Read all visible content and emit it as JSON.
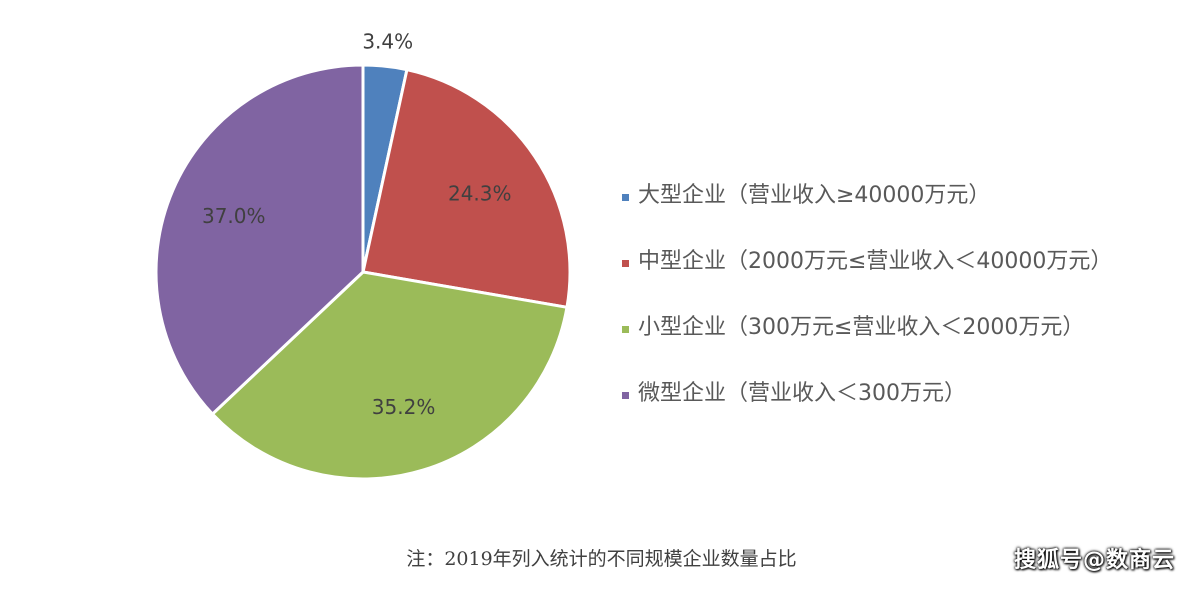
{
  "chart_data": {
    "type": "pie",
    "categories": [
      "大型企业（营业收入≥40000万元）",
      "中型企业（2000万元≤营业收入＜40000万元）",
      "小型企业（300万元≤营业收入＜2000万元）",
      "微型企业（营业收入＜300万元）"
    ],
    "values": [
      3.4,
      24.3,
      35.2,
      37.0
    ],
    "data_labels": [
      "3.4%",
      "24.3%",
      "35.2%",
      "37.0%"
    ],
    "colors": [
      "#4f81bd",
      "#c0504d",
      "#9bbb59",
      "#8064a2"
    ],
    "legend_position": "right",
    "start_angle": "12 o'clock, clockwise"
  },
  "footnote": "注：2019年列入统计的不同规模企业数量占比",
  "watermark": "搜狐号@数商云"
}
